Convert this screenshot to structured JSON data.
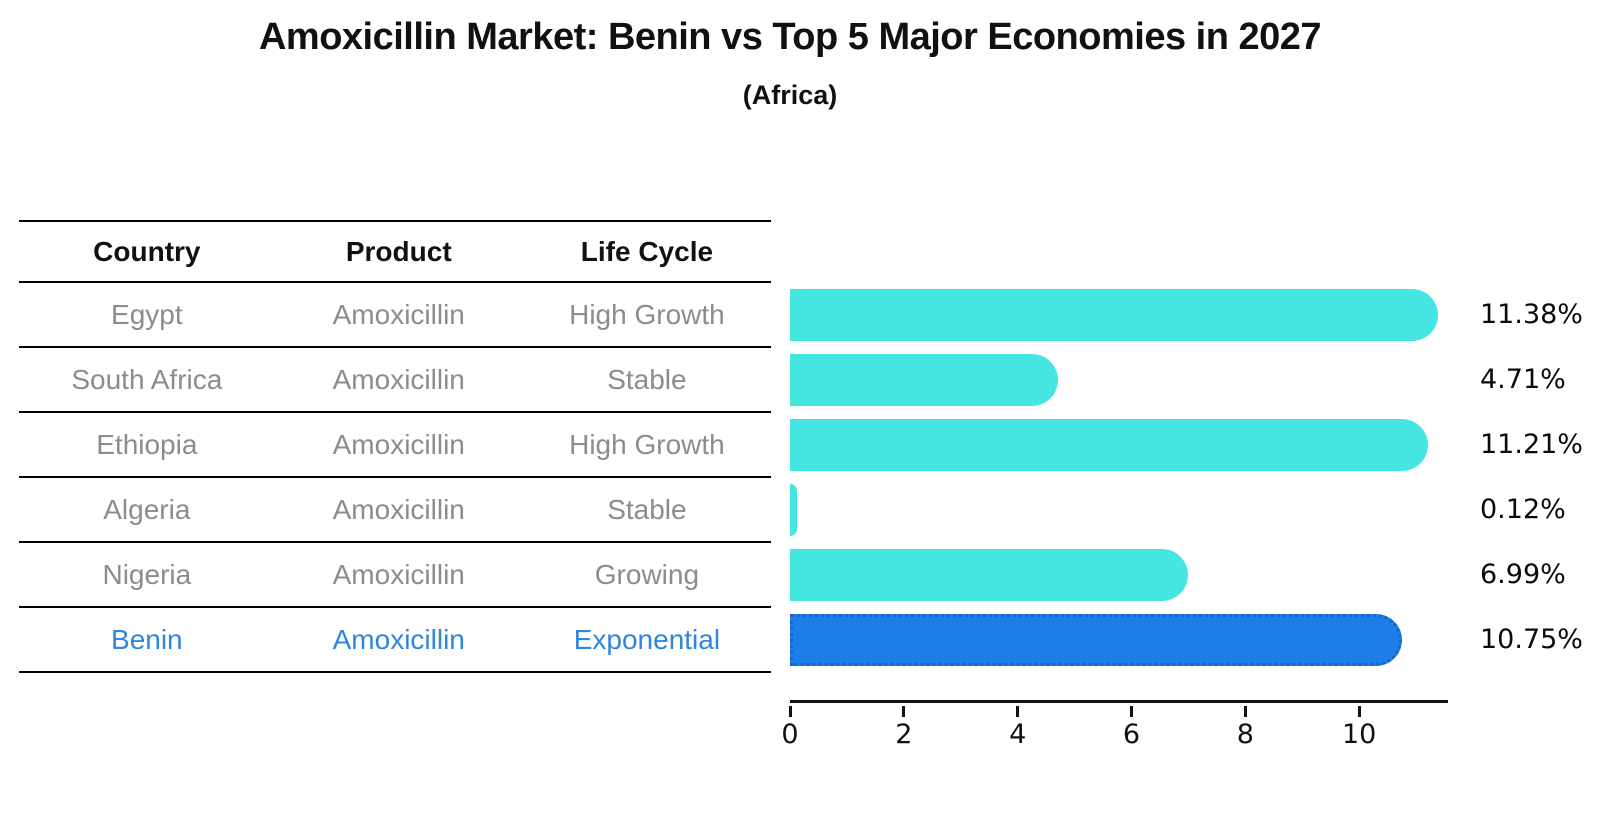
{
  "title": "Amoxicillin Market: Benin vs Top 5 Major Economies in 2027",
  "subtitle": "(Africa)",
  "table": {
    "headers": [
      "Country",
      "Product",
      "Life Cycle"
    ],
    "rows": [
      {
        "country": "Egypt",
        "product": "Amoxicillin",
        "life_cycle": "High Growth"
      },
      {
        "country": "South Africa",
        "product": "Amoxicillin",
        "life_cycle": "Stable"
      },
      {
        "country": "Ethiopia",
        "product": "Amoxicillin",
        "life_cycle": "High Growth"
      },
      {
        "country": "Algeria",
        "product": "Amoxicillin",
        "life_cycle": "Stable"
      },
      {
        "country": "Nigeria",
        "product": "Amoxicillin",
        "life_cycle": "Growing"
      },
      {
        "country": "Benin",
        "product": "Amoxicillin",
        "life_cycle": "Exponential"
      }
    ],
    "highlight_row_index": 5
  },
  "chart_data": {
    "type": "bar",
    "orientation": "horizontal",
    "title": "Amoxicillin Market: Benin vs Top 5 Major Economies in 2027",
    "subtitle": "(Africa)",
    "categories": [
      "Egypt",
      "South Africa",
      "Ethiopia",
      "Algeria",
      "Nigeria",
      "Benin"
    ],
    "values": [
      11.38,
      4.71,
      11.21,
      0.12,
      6.99,
      10.75
    ],
    "value_labels": [
      "11.38%",
      "4.71%",
      "11.21%",
      "0.12%",
      "6.99%",
      "10.75%"
    ],
    "x_ticks": [
      0,
      2,
      4,
      6,
      8,
      10
    ],
    "xlim": [
      0,
      11.49
    ],
    "grid": false,
    "legend": false,
    "bar_color": "#45e6e1",
    "highlight_index": 5,
    "highlight_bar_color": "#1e7ee8",
    "highlight_border_color": "#1564d2",
    "highlight_text_color": "#2e86de"
  }
}
